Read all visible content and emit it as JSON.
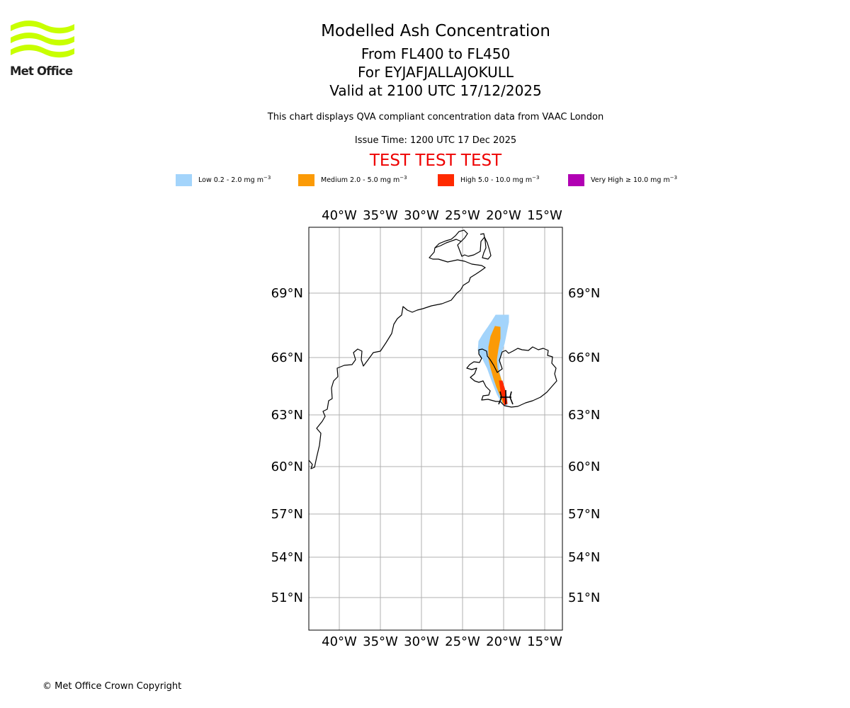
{
  "logo": {
    "text": "Met Office",
    "color": "#c8ff00"
  },
  "header": {
    "title": "Modelled Ash Concentration",
    "flight_levels": "From FL400 to FL450",
    "volcano": "For EYJAFJALLAJOKULL",
    "valid_time": "Valid at 2100 UTC 17/12/2025",
    "description": "This chart displays QVA compliant concentration data from VAAC London",
    "issue_time": "Issue Time: 1200 UTC 17 Dec 2025",
    "test_banner": "TEST TEST TEST"
  },
  "legend": [
    {
      "label": "Low 0.2 - 2.0 mg m",
      "unit_power": "−3",
      "color": "#a3d4fb"
    },
    {
      "label": "Medium 2.0 - 5.0 mg m",
      "unit_power": "−3",
      "color": "#fb9a06"
    },
    {
      "label": "High 5.0 - 10.0 mg m",
      "unit_power": "−3",
      "color": "#ff2a00"
    },
    {
      "label": "Very High ≥ 10.0 mg m",
      "unit_power": "−3",
      "color": "#b100b3"
    }
  ],
  "map": {
    "lon_ticks": [
      "40°W",
      "35°W",
      "30°W",
      "25°W",
      "20°W",
      "15°W"
    ],
    "lat_ticks": [
      "69°N",
      "66°N",
      "63°N",
      "60°N",
      "57°N",
      "54°N",
      "51°N"
    ],
    "volcano_marker": "black-cross-icon",
    "gridlines": true
  },
  "footer": {
    "copyright": "© Met Office Crown Copyright"
  }
}
